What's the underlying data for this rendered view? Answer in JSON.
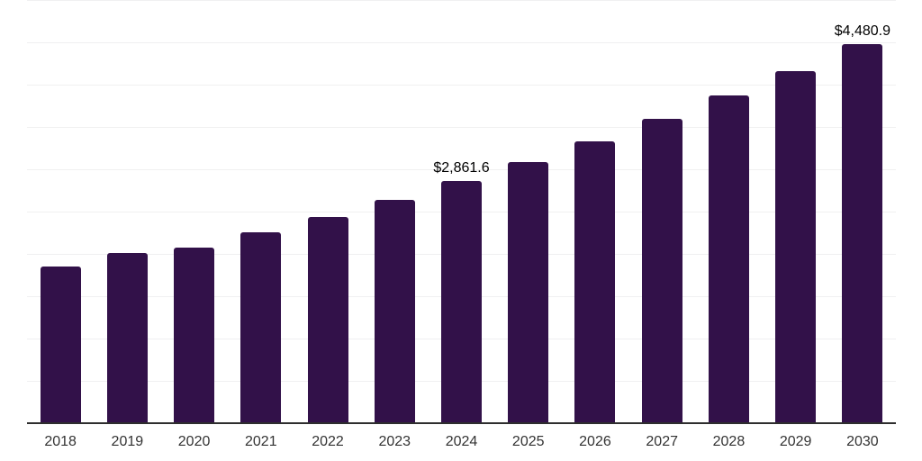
{
  "chart_data": {
    "type": "bar",
    "title": "",
    "xlabel": "",
    "ylabel": "",
    "categories": [
      "2018",
      "2019",
      "2020",
      "2021",
      "2022",
      "2023",
      "2024",
      "2025",
      "2026",
      "2027",
      "2028",
      "2029",
      "2030"
    ],
    "values": [
      1850,
      2010,
      2075,
      2255,
      2435,
      2640,
      2861.6,
      3085,
      3330,
      3595,
      3870,
      4160,
      4480.9
    ],
    "data_labels": [
      "",
      "",
      "",
      "",
      "",
      "",
      "$2,861.6",
      "",
      "",
      "",
      "",
      "",
      "$4,480.9"
    ],
    "ylim": [
      0,
      5000
    ],
    "gridline_step": 500,
    "grid": true,
    "legend_position": "none",
    "y_tick_labels_visible": false,
    "colors": {
      "bar_fill": "#321149",
      "gridline": "#f0f0f1",
      "axis_line": "#2e2e2e",
      "x_tick_label": "#333333",
      "data_label": "#000000",
      "background": "#ffffff"
    }
  }
}
